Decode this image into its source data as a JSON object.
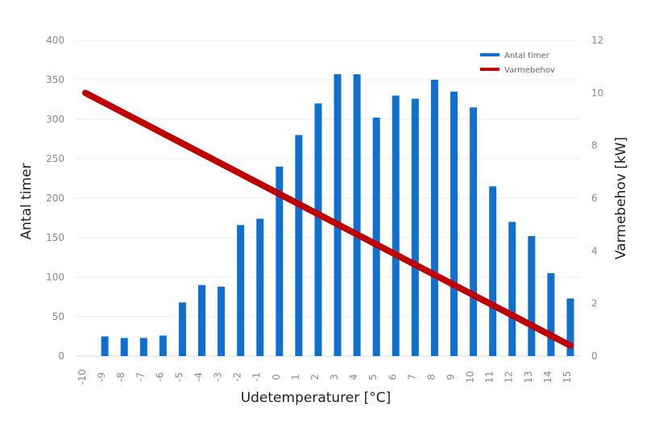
{
  "colors": {
    "bar": "#1070d0",
    "line": "#c00000",
    "grid": "#eeeeee",
    "background": "#ffffff",
    "axis_text": "#8a8a8a",
    "axis_title": "#222222"
  },
  "chart_data": {
    "type": "bar",
    "categories": [
      "-10",
      "-9",
      "-8",
      "-7",
      "-6",
      "-5",
      "-4",
      "-3",
      "-2",
      "-1",
      "0",
      "1",
      "2",
      "3",
      "4",
      "5",
      "6",
      "7",
      "8",
      "9",
      "10",
      "11",
      "12",
      "13",
      "14",
      "15"
    ],
    "series": [
      {
        "name": "Antal timer",
        "type": "bar",
        "axis": "left",
        "values": [
          0,
          25,
          23,
          23,
          26,
          68,
          90,
          88,
          166,
          174,
          240,
          280,
          320,
          357,
          357,
          302,
          330,
          326,
          350,
          335,
          315,
          215,
          170,
          152,
          105,
          73
        ]
      },
      {
        "name": "Varmebehov",
        "type": "line",
        "axis": "right",
        "x": [
          "-10",
          "15"
        ],
        "values": [
          10,
          0.4
        ]
      }
    ],
    "xlabel": "Udetemperaturer [°C]",
    "ylabel_left": "Antal timer",
    "ylabel_right": "Varmebehov [kW]",
    "ylim_left": [
      0,
      400
    ],
    "ylim_right": [
      0,
      12
    ],
    "yticks_left": [
      "0",
      "50",
      "100",
      "150",
      "200",
      "250",
      "300",
      "350",
      "400"
    ],
    "yticks_right": [
      "0",
      "2",
      "4",
      "6",
      "8",
      "10",
      "12"
    ],
    "grid": true,
    "legend": {
      "placement": "top-right",
      "entries": [
        "Antal timer",
        "Varmebehov"
      ]
    }
  }
}
